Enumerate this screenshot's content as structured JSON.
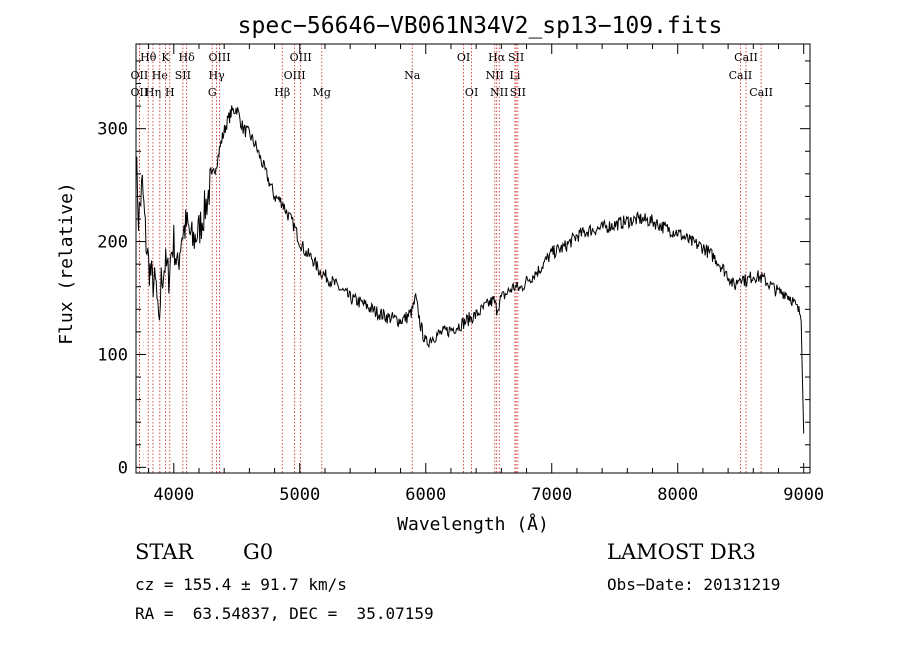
{
  "chart_data": {
    "type": "line",
    "title": "spec−56646−VB061N34V2_sp13−109.fits",
    "xlabel": "Wavelength (Å)",
    "ylabel": "Flux (relative)",
    "xlim": [
      3700,
      9050
    ],
    "ylim": [
      -5,
      375
    ],
    "xticks": [
      4000,
      5000,
      6000,
      7000,
      8000,
      9000
    ],
    "yticks": [
      0,
      100,
      200,
      300
    ],
    "x": [
      3700,
      3720,
      3750,
      3780,
      3800,
      3830,
      3860,
      3880,
      3900,
      3930,
      3960,
      3980,
      4000,
      4030,
      4060,
      4100,
      4150,
      4200,
      4250,
      4300,
      4340,
      4380,
      4420,
      4460,
      4500,
      4550,
      4600,
      4650,
      4700,
      4750,
      4800,
      4860,
      4900,
      4950,
      5000,
      5050,
      5100,
      5150,
      5200,
      5300,
      5400,
      5500,
      5600,
      5700,
      5800,
      5850,
      5890,
      5920,
      5960,
      6000,
      6050,
      6100,
      6150,
      6200,
      6250,
      6300,
      6350,
      6400,
      6450,
      6500,
      6540,
      6563,
      6600,
      6650,
      6700,
      6750,
      6800,
      6850,
      6900,
      7000,
      7100,
      7200,
      7300,
      7400,
      7500,
      7600,
      7700,
      7800,
      7900,
      8000,
      8100,
      8200,
      8300,
      8400,
      8450,
      8498,
      8542,
      8600,
      8662,
      8700,
      8750,
      8800,
      8850,
      8900,
      8950,
      8980,
      9000
    ],
    "values": [
      280,
      220,
      250,
      200,
      180,
      165,
      160,
      120,
      165,
      180,
      170,
      190,
      200,
      175,
      205,
      215,
      200,
      210,
      230,
      255,
      270,
      290,
      305,
      315,
      318,
      300,
      295,
      285,
      270,
      255,
      240,
      235,
      225,
      215,
      200,
      190,
      185,
      175,
      170,
      160,
      150,
      145,
      138,
      133,
      130,
      133,
      138,
      150,
      125,
      110,
      115,
      118,
      120,
      122,
      125,
      128,
      132,
      135,
      140,
      145,
      148,
      140,
      150,
      155,
      160,
      158,
      165,
      170,
      175,
      190,
      195,
      205,
      210,
      212,
      215,
      218,
      220,
      218,
      212,
      208,
      200,
      195,
      185,
      170,
      160,
      170,
      165,
      170,
      168,
      165,
      160,
      155,
      155,
      150,
      140,
      135,
      30
    ],
    "lines": [
      {
        "label": "Hθ",
        "wl": 3797,
        "row": 0
      },
      {
        "label": "OII",
        "wl": 3727,
        "row": 1
      },
      {
        "label": "OII",
        "wl": 3727,
        "row": 2
      },
      {
        "label": "He",
        "wl": 3889,
        "row": 1
      },
      {
        "label": "Hη",
        "wl": 3835,
        "row": 2
      },
      {
        "label": "K",
        "wl": 3934,
        "row": 0
      },
      {
        "label": "SII",
        "wl": 4072,
        "row": 1
      },
      {
        "label": "H",
        "wl": 3968,
        "row": 2
      },
      {
        "label": "Hδ",
        "wl": 4102,
        "row": 0
      },
      {
        "label": "OIII",
        "wl": 4363,
        "row": 0
      },
      {
        "label": "Hγ",
        "wl": 4340,
        "row": 1
      },
      {
        "label": "G",
        "wl": 4305,
        "row": 2
      },
      {
        "label": "Hβ",
        "wl": 4861,
        "row": 2
      },
      {
        "label": "OIII",
        "wl": 5007,
        "row": 0
      },
      {
        "label": "OIII",
        "wl": 4959,
        "row": 1
      },
      {
        "label": "Mg",
        "wl": 5175,
        "row": 2
      },
      {
        "label": "Na",
        "wl": 5893,
        "row": 1
      },
      {
        "label": "OI",
        "wl": 6300,
        "row": 0
      },
      {
        "label": "OI",
        "wl": 6364,
        "row": 2
      },
      {
        "label": "Hα",
        "wl": 6563,
        "row": 0
      },
      {
        "label": "SII",
        "wl": 6717,
        "row": 0
      },
      {
        "label": "NII",
        "wl": 6548,
        "row": 1
      },
      {
        "label": "Li",
        "wl": 6708,
        "row": 1
      },
      {
        "label": "NII",
        "wl": 6583,
        "row": 2
      },
      {
        "label": "SII",
        "wl": 6731,
        "row": 2
      },
      {
        "label": "CaII",
        "wl": 8542,
        "row": 0
      },
      {
        "label": "CaII",
        "wl": 8498,
        "row": 1
      },
      {
        "label": "CaII",
        "wl": 8662,
        "row": 2
      }
    ]
  },
  "info": {
    "object_class": "STAR",
    "subclass": "G0",
    "survey": "LAMOST DR3",
    "cz": "cz = 155.4 ± 91.7 km/s",
    "obs_date": "Obs−Date: 20131219",
    "coords": "RA =  63.54837, DEC =  35.07159"
  }
}
